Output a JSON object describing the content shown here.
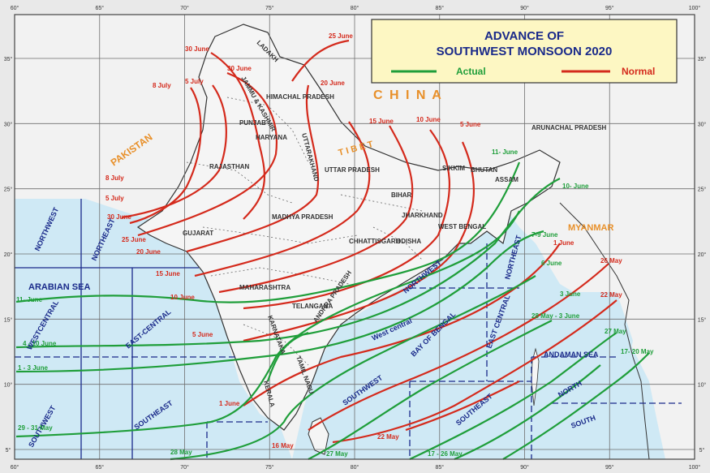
{
  "legend": {
    "title_line1": "ADVANCE OF",
    "title_line2": "SOUTHWEST MONSOON 2020",
    "actual_label": "Actual",
    "normal_label": "Normal",
    "actual_color": "#1f9e3a",
    "normal_color": "#d42a1c"
  },
  "colors": {
    "sea": "#cfe9f5",
    "land": "#f2f2f2",
    "grid": "#6e6e6e",
    "label_orange": "#e8902a",
    "sea_grid_border": "#1a2a8a"
  },
  "longitude_labels": [
    "60°",
    "65°",
    "70°",
    "75°",
    "80°",
    "85°",
    "90°",
    "95°",
    "100°"
  ],
  "latitude_labels": [
    "35°",
    "30°",
    "25°",
    "20°",
    "15°",
    "10°",
    "5°"
  ],
  "countries": {
    "china": "C H I N A",
    "pakistan": "PAKISTAN",
    "myanmar": "MYANMAR",
    "tibet": "T I B E T"
  },
  "states": [
    "LADAKH",
    "JAMMU & KASHMIR",
    "HIMACHAL PRADESH",
    "PUNJAB",
    "HARYANA",
    "UTTARAKHAND",
    "RAJASTHAN",
    "UTTAR PRADESH",
    "BIHAR",
    "MADHYA PRADESH",
    "GUJARAT",
    "JHARKHAND",
    "CHHATTISGARH",
    "ODISHA",
    "WEST BENGAL",
    "MAHARASHTRA",
    "TELANGANA",
    "ANDHRA PRADESH",
    "KARNATAKA",
    "KERALA",
    "TAMIL NADU",
    "ARUNACHAL PRADESH",
    "BHUTAN",
    "ASSAM",
    "SIKKIM"
  ],
  "sea_regions": {
    "arabian_sea": "ARABIAN SEA",
    "northwest": "NORTHWEST",
    "northeast": "NORTHEAST",
    "westcentral": "WESTCENTRAL",
    "eastcentral_arabian": "EAST-CENTRAL",
    "southwest_arabian": "SOUTHWEST",
    "southeast_arabian": "SOUTHEAST",
    "bay_of_bengal": "BAY OF BENGAL",
    "westcentral_bay": "West central",
    "northwest_bay": "NORTHWEST",
    "northeast_bay": "NORTHEAST",
    "eastcentral_bay": "EAST CENTRAL",
    "southwest_bay": "SOUTHWEST",
    "southeast_bay": "SOUTHEAST",
    "andaman_sea": "ANDAMAN SEA",
    "north_andaman": "NORTH",
    "south_andaman": "SOUTH"
  },
  "normal_dates": [
    "25 June",
    "30 June",
    "8 July",
    "5 July",
    "30 June",
    "20 June",
    "15 June",
    "10 June",
    "5 June",
    "8 July",
    "5 July",
    "30 June",
    "25 June",
    "20 June",
    "15 June",
    "10 June",
    "5 June",
    "1 June",
    "1 June",
    "26 May",
    "22 May",
    "22 May",
    "16 May"
  ],
  "actual_dates": [
    "11- June",
    "10- June",
    "7-9 June",
    "6 June",
    "3 June",
    "28 May - 3 June",
    "27 May",
    "17- 20 May",
    "11- June",
    "4 - 10 June",
    "1 - 3 June",
    "29 - 31 May",
    "28 May",
    "27 May",
    "17 - 26 May"
  ]
}
